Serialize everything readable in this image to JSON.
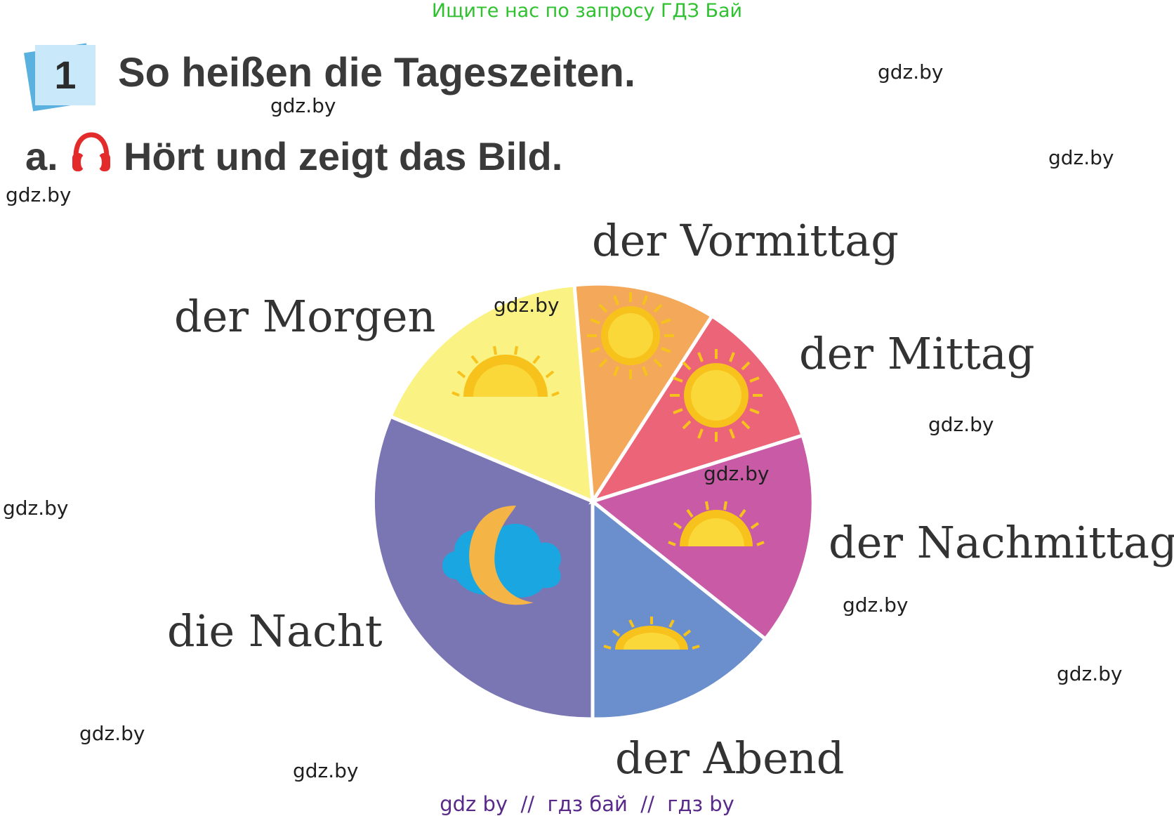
{
  "banner": "Ищите нас по запросу ГДЗ Бай",
  "exercise": {
    "number": "1",
    "title": "So heißen die Tageszeiten.",
    "sub_letter": "a.",
    "instruction": "Hört und zeigt das Bild."
  },
  "labels": {
    "vormittag": "der Vormittag",
    "morgen": "der Morgen",
    "mittag": "der Mittag",
    "nachmittag": "der Nachmittag",
    "nacht": "die Nacht",
    "abend": "der Abend"
  },
  "watermarks": [
    "gdz.by",
    "gdz.by",
    "gdz.by",
    "gdz.by",
    "gdz.by",
    "gdz.by",
    "gdz.by",
    "gdz.by",
    "gdz.by",
    "gdz.by",
    "gdz.by",
    "gdz.by"
  ],
  "footer": "gdz by  //  гдз бай  //  гдз by",
  "colors": {
    "morgen": "#fbf284",
    "vormittag": "#f4a85a",
    "mittag": "#ec6478",
    "nachmittag": "#c85aa6",
    "abend": "#6b8fcc",
    "nacht": "#7a75b3",
    "sun": "#f7c21c",
    "moon": "#f5b546",
    "cloud": "#1aa6e0",
    "headphones": "#e32b2b",
    "badge": "#c9e9fa"
  },
  "icons": [
    "headphones-icon",
    "sun-icon",
    "moon-icon",
    "cloud-icon"
  ]
}
